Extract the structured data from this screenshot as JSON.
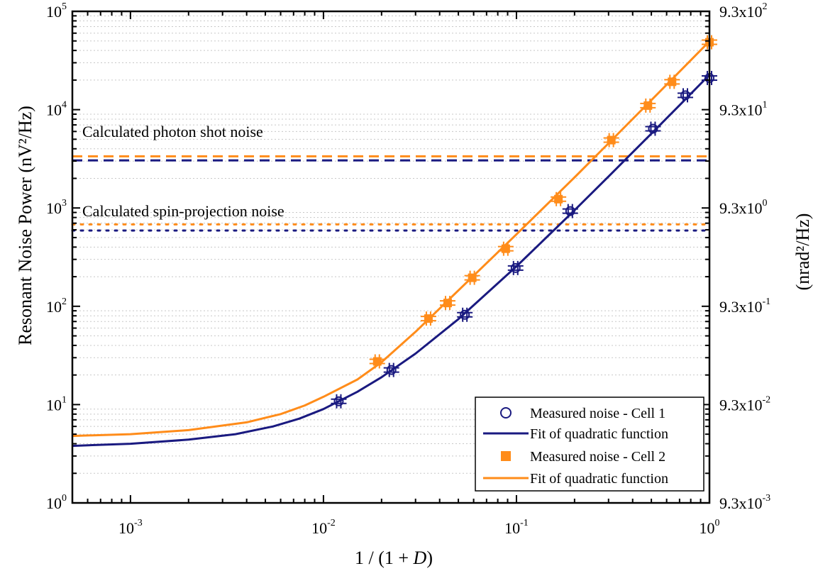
{
  "chart_data": {
    "type": "scatter",
    "xlabel_prefix": "1 / (1 + ",
    "xlabel_var": "D",
    "xlabel_suffix": ")",
    "ylabel": "Resonant Noise Power (nV²/Hz)",
    "y2label": "(nrad²/Hz)",
    "xscale": "log",
    "yscale": "log",
    "xlim": [
      0.0005,
      1
    ],
    "ylim": [
      1,
      100000
    ],
    "grid": "horizontal dotted",
    "legend_position": "bottom-right",
    "x_ticks": [
      {
        "base": "10",
        "exp": "-3",
        "value": 0.001
      },
      {
        "base": "10",
        "exp": "-2",
        "value": 0.01
      },
      {
        "base": "10",
        "exp": "-1",
        "value": 0.1
      },
      {
        "base": "10",
        "exp": "0",
        "value": 1
      }
    ],
    "y_ticks": [
      {
        "base": "10",
        "exp": "0",
        "value": 1
      },
      {
        "base": "10",
        "exp": "1",
        "value": 10
      },
      {
        "base": "10",
        "exp": "2",
        "value": 100
      },
      {
        "base": "10",
        "exp": "3",
        "value": 1000
      },
      {
        "base": "10",
        "exp": "4",
        "value": 10000
      },
      {
        "base": "10",
        "exp": "5",
        "value": 100000
      }
    ],
    "y2_ticks": [
      {
        "base": "9.3x10",
        "exp": "-3",
        "value": 1
      },
      {
        "base": "9.3x10",
        "exp": "-2",
        "value": 10
      },
      {
        "base": "9.3x10",
        "exp": "-1",
        "value": 100
      },
      {
        "base": "9.3x10",
        "exp": "0",
        "value": 1000
      },
      {
        "base": "9.3x10",
        "exp": "1",
        "value": 10000
      },
      {
        "base": "9.3x10",
        "exp": "2",
        "value": 100000
      }
    ],
    "annotations": [
      {
        "text": "Calculated photon shot noise",
        "anchor_value": 5300
      },
      {
        "text": "Calculated spin-projection noise",
        "anchor_value": 820
      }
    ],
    "reference_lines": [
      {
        "kind": "photon-shot-noise",
        "style": "dashed",
        "color": "#ff8c1a",
        "y": 3350
      },
      {
        "kind": "photon-shot-noise",
        "style": "dashed",
        "color": "#1a1a80",
        "y": 3050
      },
      {
        "kind": "spin-projection-noise",
        "style": "dotted",
        "color": "#ff8c1a",
        "y": 680
      },
      {
        "kind": "spin-projection-noise",
        "style": "dotted",
        "color": "#1a1a80",
        "y": 590
      }
    ],
    "series": [
      {
        "name": "Measured noise - Cell 1",
        "kind": "scatter",
        "marker": "open-circle",
        "color": "#1a1a80",
        "x": [
          0.012,
          0.0225,
          0.054,
          0.099,
          0.19,
          0.51,
          0.75,
          1.0
        ],
        "y": [
          10.8,
          22.5,
          82,
          245,
          930,
          6400,
          14000,
          21000
        ]
      },
      {
        "name": "Fit of quadratic function",
        "kind": "line",
        "color": "#1a1a80",
        "x": [
          0.0005,
          0.001,
          0.002,
          0.0035,
          0.0055,
          0.0075,
          0.01,
          0.015,
          0.02,
          0.03,
          0.05,
          0.1,
          0.2,
          0.3,
          0.5,
          0.7,
          1.0
        ],
        "y": [
          3.8,
          4.0,
          4.4,
          5.0,
          6.0,
          7.2,
          9.0,
          13.5,
          19,
          33,
          74,
          255,
          950,
          2090,
          5700,
          11100,
          22600
        ]
      },
      {
        "name": "Measured noise - Cell 2",
        "kind": "scatter",
        "marker": "filled-square",
        "color": "#ff8c1a",
        "x": [
          0.019,
          0.035,
          0.044,
          0.059,
          0.088,
          0.165,
          0.31,
          0.48,
          0.64,
          1.0
        ],
        "y": [
          27.5,
          75,
          108,
          195,
          385,
          1230,
          4900,
          11000,
          19200,
          48500
        ]
      },
      {
        "name": "Fit of quadratic function",
        "kind": "line",
        "color": "#ff8c1a",
        "x": [
          0.0005,
          0.001,
          0.002,
          0.004,
          0.006,
          0.008,
          0.01,
          0.015,
          0.02,
          0.03,
          0.05,
          0.1,
          0.2,
          0.3,
          0.5,
          0.7,
          1.0
        ],
        "y": [
          4.8,
          5.0,
          5.5,
          6.6,
          8.0,
          9.8,
          12,
          18,
          27,
          55,
          145,
          540,
          2050,
          4550,
          12500,
          24400,
          49600
        ]
      }
    ]
  }
}
